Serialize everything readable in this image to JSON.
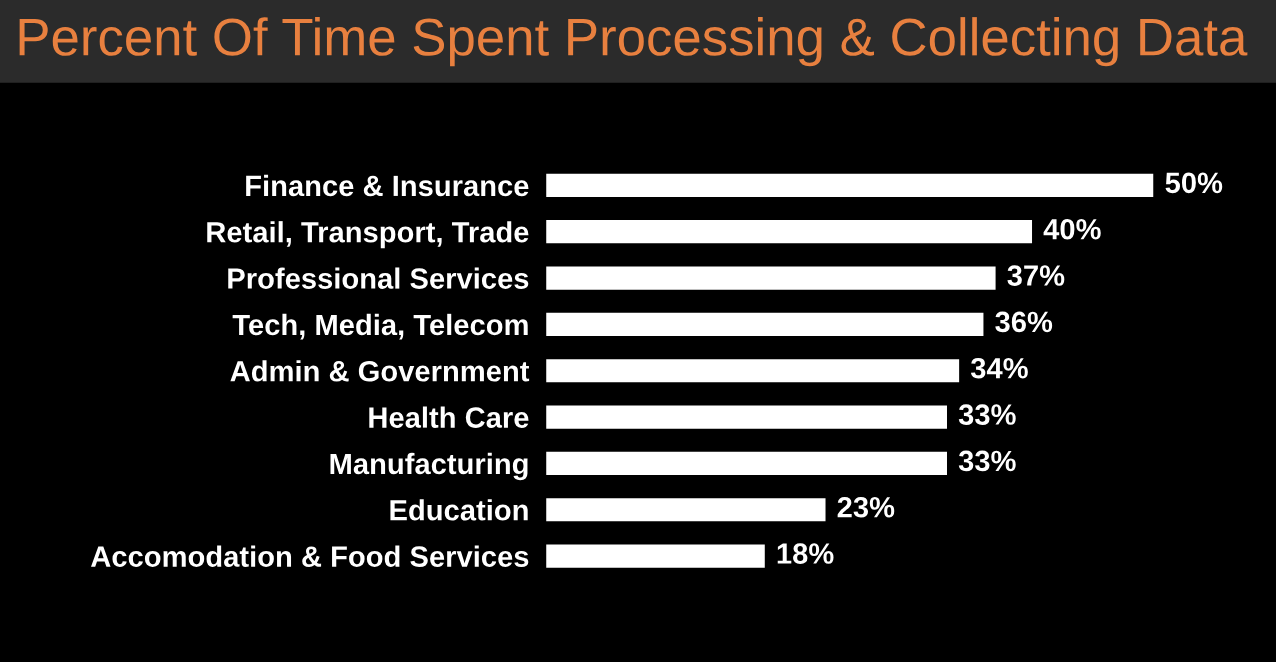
{
  "chart_data": {
    "type": "bar",
    "orientation": "horizontal",
    "title": "Percent Of Time Spent Processing & Collecting Data",
    "categories": [
      "Finance & Insurance",
      "Retail, Transport, Trade",
      "Professional Services",
      "Tech, Media, Telecom",
      "Admin & Government",
      "Health Care",
      "Manufacturing",
      "Education",
      "Accomodation & Food Services"
    ],
    "values": [
      50,
      40,
      37,
      36,
      34,
      33,
      33,
      23,
      18
    ],
    "value_labels": [
      "50%",
      "40%",
      "37%",
      "36%",
      "34%",
      "33%",
      "33%",
      "23%",
      "18%"
    ],
    "color": "#ffffff",
    "grid": false,
    "legend": false
  }
}
